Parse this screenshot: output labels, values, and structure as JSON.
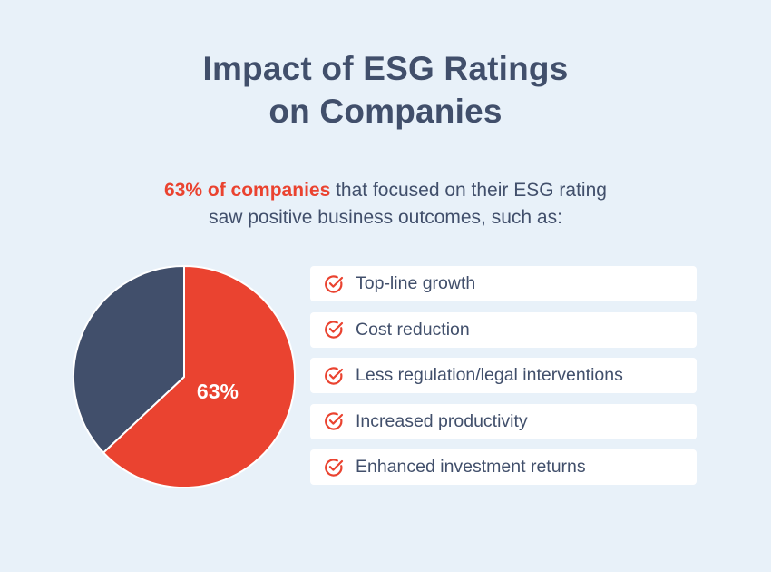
{
  "title": {
    "line1": "Impact of ESG Ratings",
    "line2": "on Companies"
  },
  "subtitle": {
    "highlight": "63% of companies",
    "rest_line1": " that focused on their ESG rating",
    "line2": "saw positive business outcomes, such as:"
  },
  "colors": {
    "accent": "#ea4330",
    "dark": "#414f6b",
    "background": "#e8f1f9"
  },
  "chart_data": {
    "type": "pie",
    "slices": [
      {
        "value": 63,
        "color": "#ea4330",
        "label": "63%"
      },
      {
        "value": 37,
        "color": "#414f6b"
      }
    ]
  },
  "outcomes": [
    {
      "icon": "check-circle-icon",
      "label": "Top-line growth"
    },
    {
      "icon": "check-circle-icon",
      "label": "Cost reduction"
    },
    {
      "icon": "check-circle-icon",
      "label": "Less regulation/legal interventions"
    },
    {
      "icon": "check-circle-icon",
      "label": "Increased productivity"
    },
    {
      "icon": "check-circle-icon",
      "label": "Enhanced investment returns"
    }
  ]
}
